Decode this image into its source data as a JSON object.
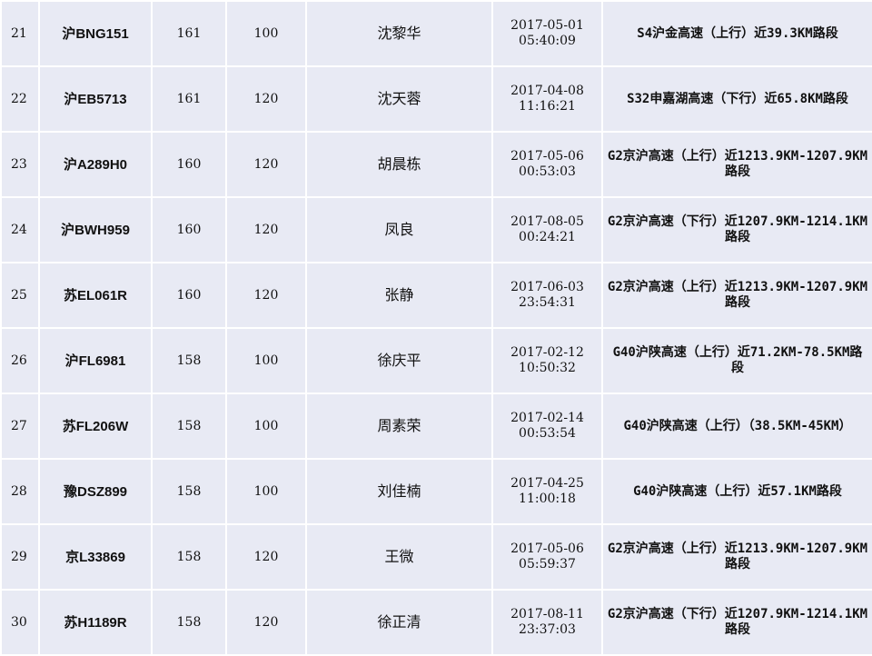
{
  "rows": [
    {
      "no": "21",
      "plate": "沪BNG151",
      "speed": "161",
      "limit": "100",
      "name": "沈黎华",
      "date": "2017-05-01",
      "time": "05:40:09",
      "location": "S4沪金高速（上行）近39.3KM路段"
    },
    {
      "no": "22",
      "plate": "沪EB5713",
      "speed": "161",
      "limit": "120",
      "name": "沈天蓉",
      "date": "2017-04-08",
      "time": "11:16:21",
      "location": "S32申嘉湖高速（下行）近65.8KM路段"
    },
    {
      "no": "23",
      "plate": "沪A289H0",
      "speed": "160",
      "limit": "120",
      "name": "胡晨栋",
      "date": "2017-05-06",
      "time": "00:53:03",
      "location": "G2京沪高速（上行）近1213.9KM-1207.9KM路段"
    },
    {
      "no": "24",
      "plate": "沪BWH959",
      "speed": "160",
      "limit": "120",
      "name": "凤良",
      "date": "2017-08-05",
      "time": "00:24:21",
      "location": "G2京沪高速（下行）近1207.9KM-1214.1KM路段"
    },
    {
      "no": "25",
      "plate": "苏EL061R",
      "speed": "160",
      "limit": "120",
      "name": "张静",
      "date": "2017-06-03",
      "time": "23:54:31",
      "location": "G2京沪高速（上行）近1213.9KM-1207.9KM路段"
    },
    {
      "no": "26",
      "plate": "沪FL6981",
      "speed": "158",
      "limit": "100",
      "name": "徐庆平",
      "date": "2017-02-12",
      "time": "10:50:32",
      "location": "G40沪陕高速（上行）近71.2KM-78.5KM路段"
    },
    {
      "no": "27",
      "plate": "苏FL206W",
      "speed": "158",
      "limit": "100",
      "name": "周素荣",
      "date": "2017-02-14",
      "time": "00:53:54",
      "location": "G40沪陕高速（上行）（38.5KM-45KM）"
    },
    {
      "no": "28",
      "plate": "豫DSZ899",
      "speed": "158",
      "limit": "100",
      "name": "刘佳楠",
      "date": "2017-04-25",
      "time": "11:00:18",
      "location": "G40沪陕高速（上行）近57.1KM路段"
    },
    {
      "no": "29",
      "plate": "京L33869",
      "speed": "158",
      "limit": "120",
      "name": "王微",
      "date": "2017-05-06",
      "time": "05:59:37",
      "location": "G2京沪高速（上行）近1213.9KM-1207.9KM路段"
    },
    {
      "no": "30",
      "plate": "苏H1189R",
      "speed": "158",
      "limit": "120",
      "name": "徐正清",
      "date": "2017-08-11",
      "time": "23:37:03",
      "location": "G2京沪高速（下行）近1207.9KM-1214.1KM路段"
    }
  ]
}
